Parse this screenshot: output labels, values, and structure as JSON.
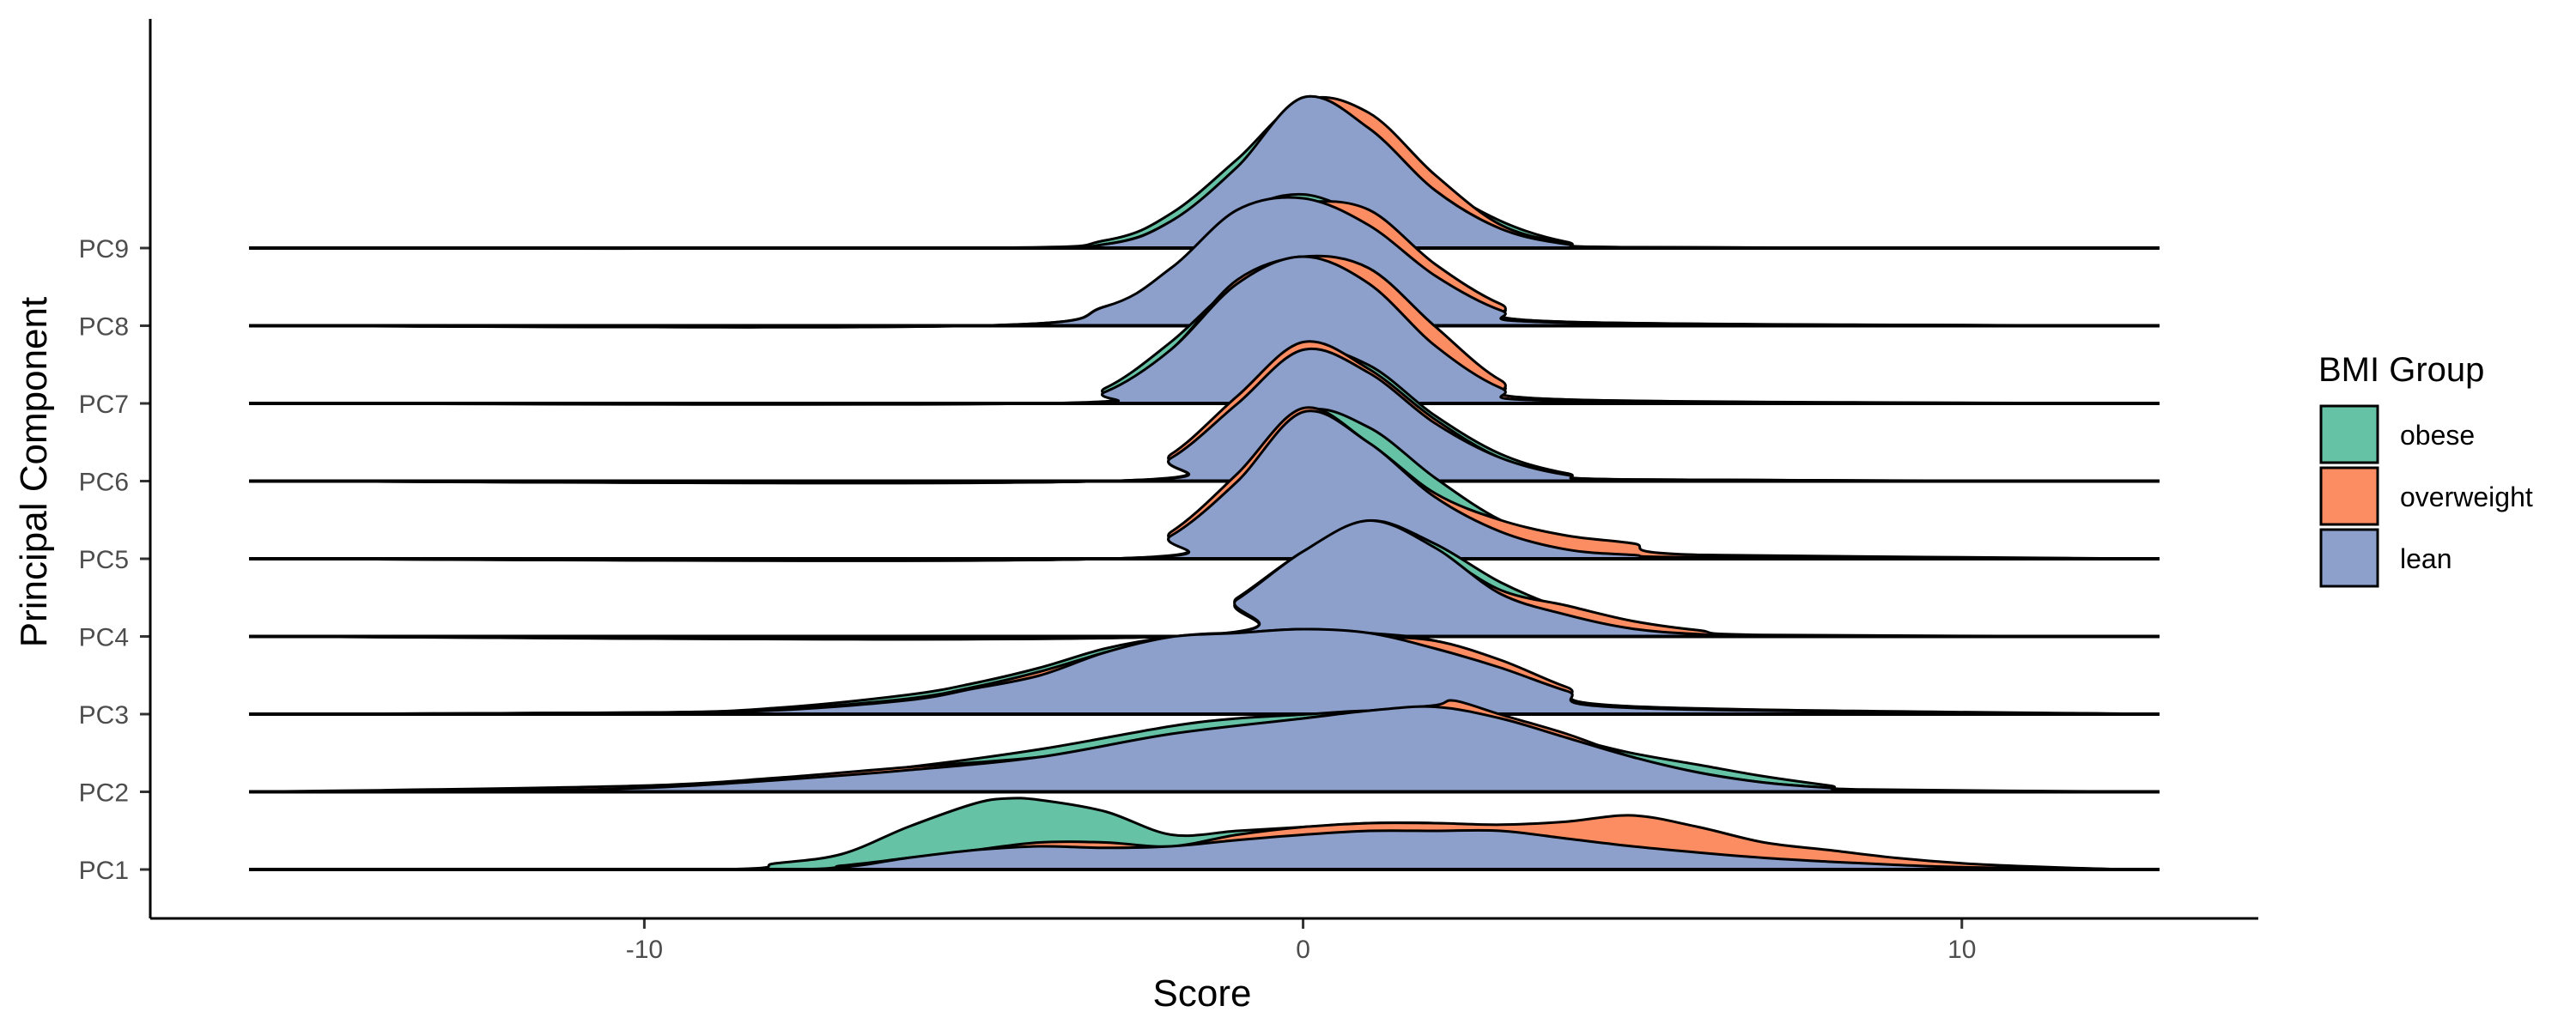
{
  "chart_data": {
    "type": "area",
    "subtype": "ridgeline-density",
    "xlabel": "Score",
    "ylabel": "Principal Component",
    "xlim": [
      -17.5,
      14.5
    ],
    "x_ticks": [
      -10,
      0,
      10
    ],
    "x_tick_labels": [
      "-10",
      "0",
      "10"
    ],
    "categories": [
      "PC1",
      "PC2",
      "PC3",
      "PC4",
      "PC5",
      "PC6",
      "PC7",
      "PC8",
      "PC9"
    ],
    "baseline_range": [
      -16,
      13
    ],
    "grid": false,
    "legend": {
      "title": "BMI Group",
      "position": "right",
      "entries": [
        "obese",
        "overweight",
        "lean"
      ]
    },
    "colors": {
      "obese": "#66c2a5",
      "overweight": "#fc8d62",
      "lean": "#8da0cb"
    },
    "draw_order": [
      "obese",
      "overweight",
      "lean"
    ],
    "series": [
      {
        "component": "PC1",
        "group": "obese",
        "x": [
          -16,
          -9,
          -8,
          -7,
          -6,
          -5,
          -4.5,
          -4,
          -3,
          -2,
          -1,
          0,
          1,
          2,
          3,
          4,
          5,
          6,
          7,
          8,
          9,
          10,
          11,
          12.5,
          13
        ],
        "y": [
          0,
          0,
          0.08,
          0.2,
          0.55,
          0.85,
          0.92,
          0.9,
          0.75,
          0.45,
          0.5,
          0.55,
          0.6,
          0.6,
          0.55,
          0.5,
          0.45,
          0.35,
          0.25,
          0.18,
          0.12,
          0.05,
          0.03,
          0,
          0
        ]
      },
      {
        "component": "PC1",
        "group": "overweight",
        "x": [
          -16,
          -8,
          -7,
          -6,
          -5,
          -4,
          -3,
          -2,
          -1,
          0,
          1,
          2,
          3,
          4,
          5,
          6,
          7,
          8,
          9,
          10,
          11,
          12.5,
          13
        ],
        "y": [
          0,
          0,
          0.05,
          0.15,
          0.25,
          0.35,
          0.35,
          0.3,
          0.45,
          0.55,
          0.6,
          0.6,
          0.58,
          0.62,
          0.7,
          0.55,
          0.35,
          0.25,
          0.15,
          0.08,
          0.04,
          0,
          0
        ]
      },
      {
        "component": "PC1",
        "group": "lean",
        "x": [
          -16,
          -8.5,
          -7,
          -6,
          -5,
          -4,
          -3,
          -2,
          -1,
          0,
          1,
          2,
          3,
          4,
          5,
          6,
          7,
          8,
          9,
          10,
          12.5,
          13
        ],
        "y": [
          0,
          0,
          0.03,
          0.15,
          0.25,
          0.3,
          0.28,
          0.3,
          0.38,
          0.45,
          0.5,
          0.5,
          0.5,
          0.4,
          0.3,
          0.22,
          0.15,
          0.1,
          0.06,
          0.03,
          0,
          0
        ]
      },
      {
        "component": "PC2",
        "group": "obese",
        "x": [
          -16,
          -14,
          -10,
          -8,
          -6,
          -4,
          -2,
          -1,
          0,
          1,
          2,
          3,
          4,
          5,
          6,
          7,
          8,
          8.5,
          13
        ],
        "y": [
          0,
          0.01,
          0.05,
          0.15,
          0.32,
          0.55,
          0.85,
          0.95,
          1.0,
          1.05,
          1.02,
          0.85,
          0.7,
          0.5,
          0.35,
          0.2,
          0.08,
          0.03,
          0
        ]
      },
      {
        "component": "PC2",
        "group": "overweight",
        "x": [
          -16,
          -14,
          -10,
          -8,
          -6,
          -4,
          -2,
          0,
          1,
          2,
          2.3,
          3,
          4,
          5,
          6,
          7,
          8,
          8.5,
          13
        ],
        "y": [
          0,
          0.02,
          0.08,
          0.18,
          0.32,
          0.45,
          0.7,
          0.95,
          1.05,
          1.12,
          1.18,
          1.0,
          0.75,
          0.45,
          0.25,
          0.12,
          0.05,
          0.02,
          0
        ]
      },
      {
        "component": "PC2",
        "group": "lean",
        "x": [
          -16,
          -12,
          -10,
          -8,
          -6,
          -4,
          -2,
          0,
          1,
          2,
          3,
          4,
          5,
          6,
          7,
          8,
          8.5,
          13
        ],
        "y": [
          0,
          0.02,
          0.05,
          0.15,
          0.28,
          0.45,
          0.75,
          0.95,
          1.05,
          1.1,
          0.95,
          0.7,
          0.45,
          0.25,
          0.12,
          0.05,
          0.02,
          0
        ]
      },
      {
        "component": "PC3",
        "group": "obese",
        "x": [
          -16,
          -10,
          -8,
          -6,
          -5,
          -4,
          -3,
          -2,
          -1,
          0,
          1,
          2,
          3,
          4,
          5,
          13
        ],
        "y": [
          0,
          0.02,
          0.08,
          0.25,
          0.4,
          0.6,
          0.85,
          1.0,
          1.05,
          1.1,
          1.05,
          0.95,
          0.65,
          0.3,
          0.08,
          0
        ]
      },
      {
        "component": "PC3",
        "group": "overweight",
        "x": [
          -16,
          -10,
          -8,
          -6,
          -5,
          -4,
          -3,
          -2,
          -1,
          0,
          1,
          2,
          3,
          4,
          5,
          13
        ],
        "y": [
          0,
          0.02,
          0.06,
          0.2,
          0.35,
          0.55,
          0.8,
          1.0,
          1.05,
          1.02,
          1.0,
          0.95,
          0.7,
          0.35,
          0.1,
          0
        ]
      },
      {
        "component": "PC3",
        "group": "lean",
        "x": [
          -16,
          -10,
          -8,
          -6,
          -5,
          -4,
          -3,
          -2,
          -1,
          0,
          1,
          2,
          3,
          4,
          5,
          13
        ],
        "y": [
          0,
          0.02,
          0.05,
          0.18,
          0.33,
          0.5,
          0.8,
          1.0,
          1.05,
          1.1,
          1.05,
          0.85,
          0.6,
          0.3,
          0.08,
          0
        ]
      },
      {
        "component": "PC4",
        "group": "obese",
        "x": [
          -16,
          -2,
          -1,
          0,
          1,
          2,
          3,
          4,
          5,
          6,
          7,
          13
        ],
        "y": [
          0,
          0,
          0.5,
          1.1,
          1.5,
          1.2,
          0.7,
          0.35,
          0.15,
          0.05,
          0.01,
          0
        ]
      },
      {
        "component": "PC4",
        "group": "overweight",
        "x": [
          -16,
          -2,
          -1,
          0,
          1,
          2,
          3,
          4,
          5,
          6,
          7,
          13
        ],
        "y": [
          0,
          0,
          0.45,
          1.1,
          1.4,
          1.1,
          0.6,
          0.4,
          0.2,
          0.08,
          0.02,
          0
        ]
      },
      {
        "component": "PC4",
        "group": "lean",
        "x": [
          -16,
          -2,
          -1,
          0,
          1,
          2,
          3,
          4,
          5,
          6,
          7,
          13
        ],
        "y": [
          0,
          0,
          0.48,
          1.1,
          1.5,
          1.15,
          0.55,
          0.28,
          0.1,
          0.03,
          0.01,
          0
        ]
      },
      {
        "component": "PC5",
        "group": "obese",
        "x": [
          -16,
          -3,
          -2,
          -1,
          0,
          1,
          2,
          3,
          4,
          5,
          6,
          13
        ],
        "y": [
          0,
          0,
          0.3,
          1.0,
          1.9,
          1.7,
          1.05,
          0.5,
          0.2,
          0.1,
          0.05,
          0
        ]
      },
      {
        "component": "PC5",
        "group": "overweight",
        "x": [
          -16,
          -3,
          -2,
          -1,
          0,
          1,
          2,
          3,
          4,
          5,
          6,
          13
        ],
        "y": [
          0,
          0,
          0.35,
          1.1,
          1.95,
          1.5,
          0.85,
          0.5,
          0.3,
          0.2,
          0.05,
          0
        ]
      },
      {
        "component": "PC5",
        "group": "lean",
        "x": [
          -16,
          -3,
          -2,
          -1,
          0,
          1,
          2,
          3,
          4,
          5,
          6,
          13
        ],
        "y": [
          0,
          0,
          0.3,
          1.0,
          1.9,
          1.5,
          0.8,
          0.35,
          0.12,
          0.05,
          0.02,
          0
        ]
      },
      {
        "component": "PC6",
        "group": "obese",
        "x": [
          -16,
          -3,
          -2,
          -1,
          0,
          1,
          2,
          3,
          4,
          5,
          13
        ],
        "y": [
          0,
          0,
          0.3,
          1.05,
          1.7,
          1.5,
          0.85,
          0.35,
          0.1,
          0.02,
          0
        ]
      },
      {
        "component": "PC6",
        "group": "overweight",
        "x": [
          -16,
          -3,
          -2,
          -1,
          0,
          1,
          2,
          3,
          4,
          5,
          13
        ],
        "y": [
          0,
          0,
          0.35,
          1.1,
          1.8,
          1.45,
          0.8,
          0.3,
          0.1,
          0.02,
          0
        ]
      },
      {
        "component": "PC6",
        "group": "lean",
        "x": [
          -16,
          -3,
          -2,
          -1,
          0,
          1,
          2,
          3,
          4,
          5,
          13
        ],
        "y": [
          0,
          0,
          0.3,
          1.0,
          1.7,
          1.4,
          0.75,
          0.3,
          0.08,
          0.02,
          0
        ]
      },
      {
        "component": "PC7",
        "group": "obese",
        "x": [
          -16,
          -4,
          -3,
          -2,
          -1,
          0,
          1,
          2,
          3,
          4,
          13
        ],
        "y": [
          0,
          0,
          0.2,
          0.8,
          1.55,
          1.9,
          1.55,
          0.8,
          0.25,
          0.05,
          0
        ]
      },
      {
        "component": "PC7",
        "group": "overweight",
        "x": [
          -16,
          -4,
          -3,
          -2,
          -1,
          0,
          1,
          2,
          3,
          4,
          13
        ],
        "y": [
          0,
          0,
          0.15,
          0.7,
          1.6,
          1.9,
          1.75,
          1.0,
          0.3,
          0.05,
          0
        ]
      },
      {
        "component": "PC7",
        "group": "lean",
        "x": [
          -16,
          -4,
          -3,
          -2,
          -1,
          0,
          1,
          2,
          3,
          4,
          13
        ],
        "y": [
          0,
          0,
          0.15,
          0.7,
          1.55,
          1.9,
          1.55,
          0.75,
          0.2,
          0.03,
          0
        ]
      },
      {
        "component": "PC8",
        "group": "obese",
        "x": [
          -16,
          -5,
          -3,
          -2,
          -1,
          0,
          1,
          2,
          3,
          4,
          13
        ],
        "y": [
          0,
          0,
          0.25,
          0.7,
          1.45,
          1.7,
          1.35,
          0.7,
          0.25,
          0.05,
          0
        ]
      },
      {
        "component": "PC8",
        "group": "overweight",
        "x": [
          -16,
          -5,
          -3,
          -2,
          -1,
          0,
          1,
          2,
          3,
          4,
          13
        ],
        "y": [
          0,
          0,
          0.2,
          0.65,
          1.4,
          1.6,
          1.5,
          0.8,
          0.28,
          0.05,
          0
        ]
      },
      {
        "component": "PC8",
        "group": "lean",
        "x": [
          -16,
          -5,
          -3,
          -2,
          -1,
          0,
          1,
          2,
          3,
          4,
          13
        ],
        "y": [
          0,
          0,
          0.25,
          0.75,
          1.5,
          1.65,
          1.3,
          0.65,
          0.2,
          0.04,
          0
        ]
      },
      {
        "component": "PC9",
        "group": "obese",
        "x": [
          -16,
          -5,
          -3,
          -2,
          -1,
          0,
          1,
          2,
          3,
          4,
          5,
          13
        ],
        "y": [
          0,
          0,
          0.1,
          0.45,
          1.15,
          1.9,
          1.6,
          0.85,
          0.35,
          0.08,
          0.01,
          0
        ]
      },
      {
        "component": "PC9",
        "group": "overweight",
        "x": [
          -16,
          -5,
          -3,
          -2,
          -1,
          0,
          1,
          2,
          3,
          4,
          5,
          13
        ],
        "y": [
          0,
          0,
          0.05,
          0.35,
          1.0,
          1.9,
          1.75,
          0.95,
          0.3,
          0.07,
          0.01,
          0
        ]
      },
      {
        "component": "PC9",
        "group": "lean",
        "x": [
          -16,
          -5,
          -3,
          -2,
          -1,
          0,
          1,
          2,
          3,
          4,
          5,
          13
        ],
        "y": [
          0,
          0,
          0.05,
          0.35,
          1.05,
          1.95,
          1.55,
          0.75,
          0.25,
          0.05,
          0.01,
          0
        ]
      }
    ]
  }
}
